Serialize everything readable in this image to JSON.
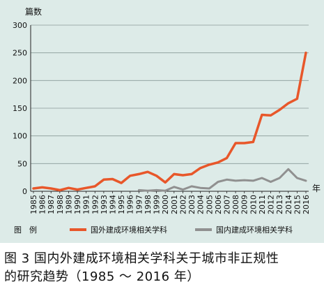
{
  "chart_data": {
    "type": "line",
    "ylabel": "篇数",
    "xlabel": "年",
    "ylim": [
      0,
      300
    ],
    "yticks": [
      "0",
      "50",
      "100",
      "150",
      "200",
      "250",
      "300"
    ],
    "x": [
      "1985",
      "1986",
      "1987",
      "1988",
      "1989",
      "1990",
      "1991",
      "1992",
      "1993",
      "1994",
      "1995",
      "1996",
      "1997",
      "1998",
      "1999",
      "2000",
      "2001",
      "2002",
      "2003",
      "2004",
      "2005",
      "2006",
      "2007",
      "2008",
      "2009",
      "2010",
      "2011",
      "2012",
      "2013",
      "2014",
      "2015",
      "2016"
    ],
    "series": [
      {
        "name": "国外建成环境相关学科",
        "color": "#e8572a",
        "values": [
          5,
          7,
          5,
          2,
          6,
          3,
          6,
          9,
          21,
          22,
          15,
          28,
          31,
          35,
          28,
          16,
          31,
          29,
          31,
          42,
          48,
          52,
          60,
          87,
          87,
          89,
          138,
          137,
          147,
          159,
          167,
          250
        ]
      },
      {
        "name": "国内建成环境相关学科",
        "color": "#909090",
        "values": [
          null,
          null,
          null,
          null,
          null,
          null,
          null,
          null,
          null,
          null,
          null,
          null,
          2,
          1,
          2,
          1,
          8,
          3,
          9,
          6,
          5,
          17,
          21,
          19,
          20,
          19,
          24,
          17,
          24,
          40,
          24,
          19
        ]
      }
    ],
    "grid": true,
    "legend_position": "bottom",
    "legend_title": "图　例"
  },
  "caption": {
    "line1": "图 3  国内外建成环境相关学科关于城市非正规性",
    "line2": "的研究趋势（1985 ～ 2016 年）"
  }
}
